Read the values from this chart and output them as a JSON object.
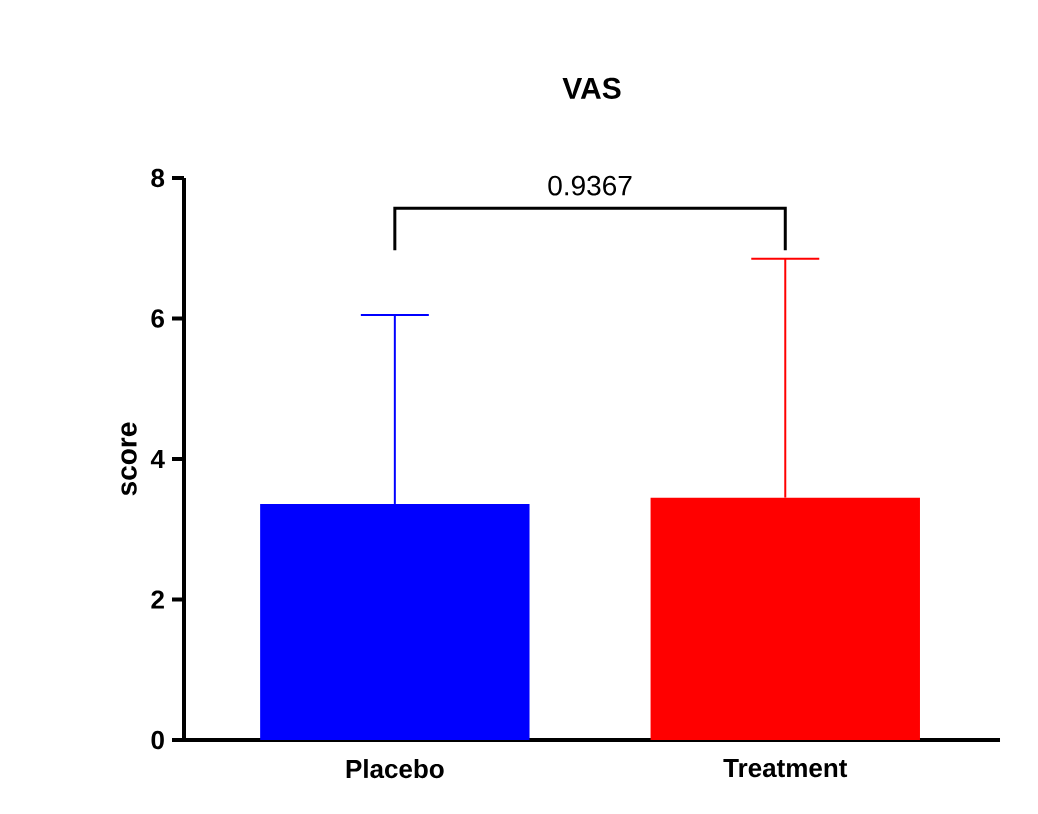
{
  "chart_data": {
    "type": "bar",
    "title": "VAS",
    "ylabel": "score",
    "categories": [
      "Placebo",
      "Treatment"
    ],
    "values": [
      3.36,
      3.45
    ],
    "colors": [
      "#0000ff",
      "#ff0000"
    ],
    "errors": [
      [
        3.36,
        6.05
      ],
      [
        3.45,
        6.85
      ]
    ],
    "ylim": [
      0,
      8
    ],
    "yticks": [
      0,
      2,
      4,
      6,
      8
    ],
    "annotations": [
      "0.9367"
    ]
  }
}
